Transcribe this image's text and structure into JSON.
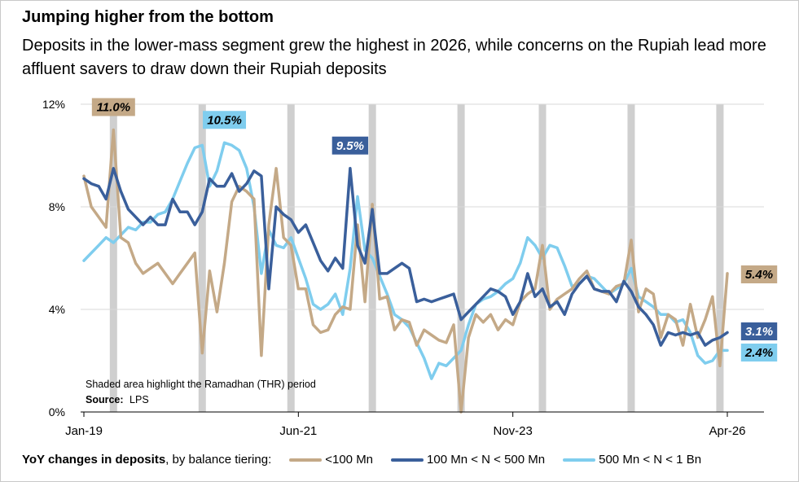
{
  "title": "Jumping higher from the bottom",
  "subtitle": "Deposits in the lower-mass segment grew the highest in 2026, while concerns on the Rupiah lead more affluent savers to draw down their Rupiah deposits",
  "annotations": {
    "note": "Shaded area highlight the Ramadhan (THR) period",
    "source_label": "Source:",
    "source_value": "LPS"
  },
  "legend": {
    "lead_bold": "YoY changes in deposits",
    "lead_rest": ", by balance tiering:"
  },
  "chart_data": {
    "type": "line",
    "ylim": [
      0,
      12
    ],
    "y_ticks": [
      0,
      4,
      8,
      12
    ],
    "y_tick_labels": [
      "0%",
      "4%",
      "8%",
      "12%"
    ],
    "x_range": [
      "2019-01",
      "2026-04"
    ],
    "x_ticks": [
      {
        "date": "2019-01",
        "label": "Jan-19"
      },
      {
        "date": "2021-06",
        "label": "Jun-21"
      },
      {
        "date": "2023-11",
        "label": "Nov-23"
      },
      {
        "date": "2026-04",
        "label": "Apr-26"
      }
    ],
    "grid": true,
    "shaded_periods": [
      "2019-05",
      "2020-05",
      "2021-05",
      "2022-04",
      "2023-04",
      "2024-03",
      "2025-03",
      "2026-03"
    ],
    "series": [
      {
        "name": "<100 Mn",
        "color": "#c4a987",
        "label": "5.4%",
        "points": [
          [
            "2019-01",
            9.2
          ],
          [
            "2019-02",
            8.0
          ],
          [
            "2019-03",
            7.6
          ],
          [
            "2019-04",
            7.2
          ],
          [
            "2019-05",
            11.0
          ],
          [
            "2019-06",
            6.8
          ],
          [
            "2019-07",
            6.6
          ],
          [
            "2019-08",
            5.8
          ],
          [
            "2019-09",
            5.4
          ],
          [
            "2019-10",
            5.6
          ],
          [
            "2019-11",
            5.8
          ],
          [
            "2019-12",
            5.4
          ],
          [
            "2020-01",
            5.0
          ],
          [
            "2020-02",
            5.4
          ],
          [
            "2020-03",
            5.8
          ],
          [
            "2020-04",
            6.2
          ],
          [
            "2020-05",
            2.3
          ],
          [
            "2020-06",
            5.5
          ],
          [
            "2020-07",
            3.9
          ],
          [
            "2020-08",
            5.8
          ],
          [
            "2020-09",
            8.2
          ],
          [
            "2020-10",
            8.8
          ],
          [
            "2020-11",
            8.6
          ],
          [
            "2020-12",
            8.3
          ],
          [
            "2021-01",
            2.2
          ],
          [
            "2021-02",
            7.3
          ],
          [
            "2021-03",
            9.5
          ],
          [
            "2021-04",
            6.8
          ],
          [
            "2021-05",
            6.5
          ],
          [
            "2021-06",
            4.8
          ],
          [
            "2021-07",
            4.8
          ],
          [
            "2021-08",
            3.4
          ],
          [
            "2021-09",
            3.1
          ],
          [
            "2021-10",
            3.2
          ],
          [
            "2021-11",
            3.8
          ],
          [
            "2021-12",
            4.1
          ],
          [
            "2022-01",
            4.0
          ],
          [
            "2022-02",
            7.3
          ],
          [
            "2022-03",
            4.3
          ],
          [
            "2022-04",
            8.1
          ],
          [
            "2022-05",
            4.4
          ],
          [
            "2022-06",
            4.5
          ],
          [
            "2022-07",
            3.2
          ],
          [
            "2022-08",
            3.6
          ],
          [
            "2022-09",
            3.5
          ],
          [
            "2022-10",
            2.6
          ],
          [
            "2022-11",
            3.2
          ],
          [
            "2022-12",
            3.0
          ],
          [
            "2023-01",
            2.8
          ],
          [
            "2023-02",
            2.7
          ],
          [
            "2023-03",
            3.4
          ],
          [
            "2023-04",
            0.0
          ],
          [
            "2023-05",
            2.9
          ],
          [
            "2023-06",
            3.8
          ],
          [
            "2023-07",
            3.5
          ],
          [
            "2023-08",
            3.8
          ],
          [
            "2023-09",
            3.2
          ],
          [
            "2023-10",
            3.6
          ],
          [
            "2023-11",
            3.4
          ],
          [
            "2023-12",
            4.3
          ],
          [
            "2024-01",
            4.6
          ],
          [
            "2024-02",
            4.8
          ],
          [
            "2024-03",
            6.5
          ],
          [
            "2024-04",
            4.0
          ],
          [
            "2024-05",
            4.4
          ],
          [
            "2024-06",
            4.6
          ],
          [
            "2024-07",
            4.8
          ],
          [
            "2024-08",
            5.2
          ],
          [
            "2024-09",
            5.5
          ],
          [
            "2024-10",
            4.8
          ],
          [
            "2024-11",
            4.7
          ],
          [
            "2024-12",
            4.6
          ],
          [
            "2025-01",
            4.9
          ],
          [
            "2025-02",
            5.0
          ],
          [
            "2025-03",
            6.7
          ],
          [
            "2025-04",
            3.9
          ],
          [
            "2025-05",
            4.8
          ],
          [
            "2025-06",
            4.6
          ],
          [
            "2025-07",
            2.9
          ],
          [
            "2025-08",
            3.8
          ],
          [
            "2025-09",
            3.6
          ],
          [
            "2025-10",
            2.6
          ],
          [
            "2025-11",
            4.2
          ],
          [
            "2025-12",
            2.9
          ],
          [
            "2026-01",
            3.6
          ],
          [
            "2026-02",
            4.5
          ],
          [
            "2026-03",
            1.8
          ],
          [
            "2026-04",
            5.4
          ]
        ]
      },
      {
        "name": "100 Mn < N < 500 Mn",
        "color": "#3a5f9b",
        "label": "3.1%",
        "points": [
          [
            "2019-01",
            9.1
          ],
          [
            "2019-02",
            8.9
          ],
          [
            "2019-03",
            8.8
          ],
          [
            "2019-04",
            8.3
          ],
          [
            "2019-05",
            9.5
          ],
          [
            "2019-06",
            8.6
          ],
          [
            "2019-07",
            7.9
          ],
          [
            "2019-08",
            7.6
          ],
          [
            "2019-09",
            7.3
          ],
          [
            "2019-10",
            7.6
          ],
          [
            "2019-11",
            7.3
          ],
          [
            "2019-12",
            7.3
          ],
          [
            "2020-01",
            8.3
          ],
          [
            "2020-02",
            7.8
          ],
          [
            "2020-03",
            7.8
          ],
          [
            "2020-04",
            7.3
          ],
          [
            "2020-05",
            7.8
          ],
          [
            "2020-06",
            9.1
          ],
          [
            "2020-07",
            8.8
          ],
          [
            "2020-08",
            8.8
          ],
          [
            "2020-09",
            9.3
          ],
          [
            "2020-10",
            8.6
          ],
          [
            "2020-11",
            8.9
          ],
          [
            "2020-12",
            9.4
          ],
          [
            "2021-01",
            9.2
          ],
          [
            "2021-02",
            4.8
          ],
          [
            "2021-03",
            8.0
          ],
          [
            "2021-04",
            7.7
          ],
          [
            "2021-05",
            7.5
          ],
          [
            "2021-06",
            7.0
          ],
          [
            "2021-07",
            7.3
          ],
          [
            "2021-08",
            6.6
          ],
          [
            "2021-09",
            5.9
          ],
          [
            "2021-10",
            5.5
          ],
          [
            "2021-11",
            6.0
          ],
          [
            "2021-12",
            5.6
          ],
          [
            "2022-01",
            9.5
          ],
          [
            "2022-02",
            6.5
          ],
          [
            "2022-03",
            5.8
          ],
          [
            "2022-04",
            7.9
          ],
          [
            "2022-05",
            5.4
          ],
          [
            "2022-06",
            5.4
          ],
          [
            "2022-07",
            5.6
          ],
          [
            "2022-08",
            5.8
          ],
          [
            "2022-09",
            5.6
          ],
          [
            "2022-10",
            4.3
          ],
          [
            "2022-11",
            4.4
          ],
          [
            "2022-12",
            4.3
          ],
          [
            "2023-01",
            4.4
          ],
          [
            "2023-02",
            4.5
          ],
          [
            "2023-03",
            4.6
          ],
          [
            "2023-04",
            3.6
          ],
          [
            "2023-05",
            3.9
          ],
          [
            "2023-06",
            4.2
          ],
          [
            "2023-07",
            4.5
          ],
          [
            "2023-08",
            4.8
          ],
          [
            "2023-09",
            4.7
          ],
          [
            "2023-10",
            4.5
          ],
          [
            "2023-11",
            3.8
          ],
          [
            "2023-12",
            4.3
          ],
          [
            "2024-01",
            5.4
          ],
          [
            "2024-02",
            4.5
          ],
          [
            "2024-03",
            4.8
          ],
          [
            "2024-04",
            4.1
          ],
          [
            "2024-05",
            4.3
          ],
          [
            "2024-06",
            3.8
          ],
          [
            "2024-07",
            4.6
          ],
          [
            "2024-08",
            5.0
          ],
          [
            "2024-09",
            5.3
          ],
          [
            "2024-10",
            4.8
          ],
          [
            "2024-11",
            4.7
          ],
          [
            "2024-12",
            4.7
          ],
          [
            "2025-01",
            4.3
          ],
          [
            "2025-02",
            5.1
          ],
          [
            "2025-03",
            4.7
          ],
          [
            "2025-04",
            4.1
          ],
          [
            "2025-05",
            3.8
          ],
          [
            "2025-06",
            3.4
          ],
          [
            "2025-07",
            2.6
          ],
          [
            "2025-08",
            3.1
          ],
          [
            "2025-09",
            3.0
          ],
          [
            "2025-10",
            3.1
          ],
          [
            "2025-11",
            3.0
          ],
          [
            "2025-12",
            3.1
          ],
          [
            "2026-01",
            2.6
          ],
          [
            "2026-02",
            2.8
          ],
          [
            "2026-03",
            2.9
          ],
          [
            "2026-04",
            3.1
          ]
        ]
      },
      {
        "name": "500 Mn < N < 1 Bn",
        "color": "#7fcdee",
        "label": "2.4%",
        "points": [
          [
            "2019-01",
            5.9
          ],
          [
            "2019-02",
            6.2
          ],
          [
            "2019-03",
            6.5
          ],
          [
            "2019-04",
            6.8
          ],
          [
            "2019-05",
            6.6
          ],
          [
            "2019-06",
            6.9
          ],
          [
            "2019-07",
            7.2
          ],
          [
            "2019-08",
            7.1
          ],
          [
            "2019-09",
            7.4
          ],
          [
            "2019-10",
            7.4
          ],
          [
            "2019-11",
            7.7
          ],
          [
            "2019-12",
            7.8
          ],
          [
            "2020-01",
            8.3
          ],
          [
            "2020-02",
            9.0
          ],
          [
            "2020-03",
            9.7
          ],
          [
            "2020-04",
            10.3
          ],
          [
            "2020-05",
            10.4
          ],
          [
            "2020-06",
            8.8
          ],
          [
            "2020-07",
            9.4
          ],
          [
            "2020-08",
            10.5
          ],
          [
            "2020-09",
            10.4
          ],
          [
            "2020-10",
            10.2
          ],
          [
            "2020-11",
            9.5
          ],
          [
            "2020-12",
            8.0
          ],
          [
            "2021-01",
            5.4
          ],
          [
            "2021-02",
            7.1
          ],
          [
            "2021-03",
            6.5
          ],
          [
            "2021-04",
            6.4
          ],
          [
            "2021-05",
            6.8
          ],
          [
            "2021-06",
            6.0
          ],
          [
            "2021-07",
            5.2
          ],
          [
            "2021-08",
            4.2
          ],
          [
            "2021-09",
            4.0
          ],
          [
            "2021-10",
            4.2
          ],
          [
            "2021-11",
            4.6
          ],
          [
            "2021-12",
            3.8
          ],
          [
            "2022-01",
            5.6
          ],
          [
            "2022-02",
            8.4
          ],
          [
            "2022-03",
            6.3
          ],
          [
            "2022-04",
            6.0
          ],
          [
            "2022-05",
            5.3
          ],
          [
            "2022-06",
            4.6
          ],
          [
            "2022-07",
            3.8
          ],
          [
            "2022-08",
            3.6
          ],
          [
            "2022-09",
            3.3
          ],
          [
            "2022-10",
            2.7
          ],
          [
            "2022-11",
            2.1
          ],
          [
            "2022-12",
            1.3
          ],
          [
            "2023-01",
            1.9
          ],
          [
            "2023-02",
            1.8
          ],
          [
            "2023-03",
            2.1
          ],
          [
            "2023-04",
            2.4
          ],
          [
            "2023-05",
            3.4
          ],
          [
            "2023-06",
            4.2
          ],
          [
            "2023-07",
            4.4
          ],
          [
            "2023-08",
            4.5
          ],
          [
            "2023-09",
            4.7
          ],
          [
            "2023-10",
            5.0
          ],
          [
            "2023-11",
            5.2
          ],
          [
            "2023-12",
            5.8
          ],
          [
            "2024-01",
            6.8
          ],
          [
            "2024-02",
            6.5
          ],
          [
            "2024-03",
            6.0
          ],
          [
            "2024-04",
            6.5
          ],
          [
            "2024-05",
            6.4
          ],
          [
            "2024-06",
            5.7
          ],
          [
            "2024-07",
            4.9
          ],
          [
            "2024-08",
            5.0
          ],
          [
            "2024-09",
            5.3
          ],
          [
            "2024-10",
            5.2
          ],
          [
            "2024-11",
            4.9
          ],
          [
            "2024-12",
            4.6
          ],
          [
            "2025-01",
            4.8
          ],
          [
            "2025-02",
            5.0
          ],
          [
            "2025-03",
            5.6
          ],
          [
            "2025-04",
            4.5
          ],
          [
            "2025-05",
            4.3
          ],
          [
            "2025-06",
            4.1
          ],
          [
            "2025-07",
            3.8
          ],
          [
            "2025-08",
            3.8
          ],
          [
            "2025-09",
            3.5
          ],
          [
            "2025-10",
            3.6
          ],
          [
            "2025-11",
            3.1
          ],
          [
            "2025-12",
            2.2
          ],
          [
            "2026-01",
            1.9
          ],
          [
            "2026-02",
            2.0
          ],
          [
            "2026-03",
            2.4
          ],
          [
            "2026-04",
            2.4
          ]
        ]
      }
    ],
    "callouts": [
      {
        "text": "11.0%",
        "series": 0,
        "date": "2019-05",
        "value": 11.0
      },
      {
        "text": "10.5%",
        "series": 2,
        "date": "2020-08",
        "value": 10.5
      },
      {
        "text": "9.5%",
        "series": 1,
        "date": "2022-01",
        "value": 9.5
      }
    ]
  }
}
